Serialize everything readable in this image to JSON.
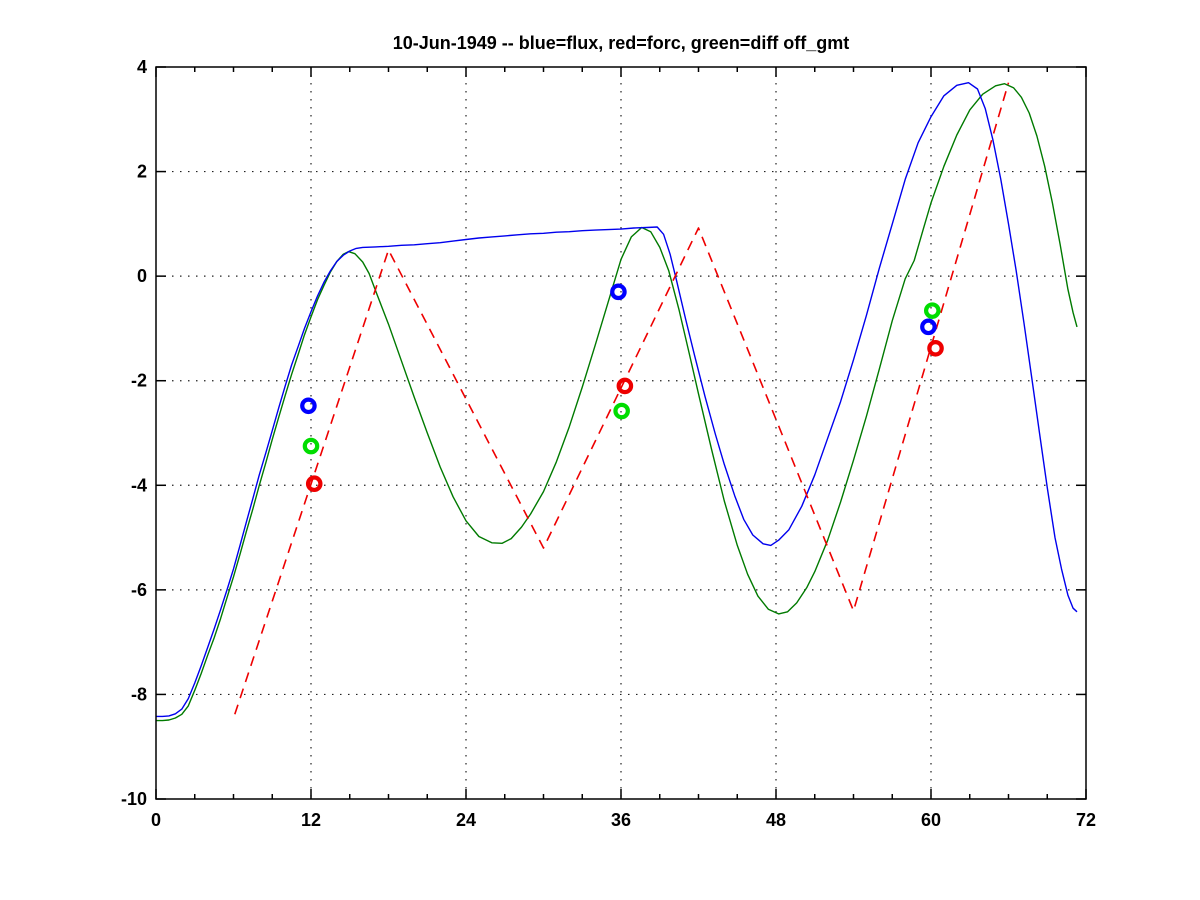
{
  "chart_data": {
    "type": "line",
    "title": "10-Jun-1949 -- blue=flux, red=forc, green=diff off_gmt",
    "xlabel": "",
    "ylabel": "",
    "xlim": [
      0,
      72
    ],
    "ylim": [
      -10,
      4
    ],
    "x_ticks": [
      0,
      12,
      24,
      36,
      48,
      60,
      72
    ],
    "x_minor_step": 3,
    "y_ticks": [
      4,
      2,
      0,
      -2,
      -4,
      -6,
      -8,
      -10
    ],
    "grid": "dotted",
    "legend_in_title": {
      "blue": "flux",
      "red": "forc",
      "green": "diff off_gmt"
    },
    "colors": {
      "flux_line": "#0000ee",
      "forc_line": "#ee0000",
      "diff_line": "#007a00",
      "flux_marker": "#0000ff",
      "forc_marker": "#ee0000",
      "diff_marker": "#00dd00",
      "grid": "#222222",
      "axis": "#000000"
    },
    "series": [
      {
        "name": "diff",
        "style": "solid",
        "points": [
          [
            0,
            -8.5
          ],
          [
            0.5,
            -8.5
          ],
          [
            1,
            -8.49
          ],
          [
            1.5,
            -8.45
          ],
          [
            2,
            -8.38
          ],
          [
            2.5,
            -8.22
          ],
          [
            3,
            -7.92
          ],
          [
            3.5,
            -7.6
          ],
          [
            4,
            -7.25
          ],
          [
            4.5,
            -6.92
          ],
          [
            5,
            -6.55
          ],
          [
            5.5,
            -6.15
          ],
          [
            6,
            -5.75
          ],
          [
            6.5,
            -5.32
          ],
          [
            7,
            -4.88
          ],
          [
            7.5,
            -4.45
          ],
          [
            8,
            -4.0
          ],
          [
            8.5,
            -3.57
          ],
          [
            9,
            -3.12
          ],
          [
            9.5,
            -2.7
          ],
          [
            10,
            -2.28
          ],
          [
            10.5,
            -1.88
          ],
          [
            11,
            -1.5
          ],
          [
            11.5,
            -1.12
          ],
          [
            12,
            -0.78
          ],
          [
            12.5,
            -0.45
          ],
          [
            13,
            -0.18
          ],
          [
            13.5,
            0.08
          ],
          [
            14,
            0.28
          ],
          [
            14.5,
            0.42
          ],
          [
            14.9,
            0.47
          ],
          [
            15.4,
            0.43
          ],
          [
            16,
            0.27
          ],
          [
            16.5,
            0.05
          ],
          [
            17,
            -0.28
          ],
          [
            18,
            -0.92
          ],
          [
            19,
            -1.62
          ],
          [
            20,
            -2.32
          ],
          [
            21,
            -3.0
          ],
          [
            22,
            -3.65
          ],
          [
            23,
            -4.22
          ],
          [
            24,
            -4.68
          ],
          [
            25,
            -4.98
          ],
          [
            26,
            -5.1
          ],
          [
            26.8,
            -5.11
          ],
          [
            27.5,
            -5.02
          ],
          [
            28.3,
            -4.8
          ],
          [
            29,
            -4.55
          ],
          [
            30,
            -4.12
          ],
          [
            31,
            -3.55
          ],
          [
            32,
            -2.88
          ],
          [
            33,
            -2.12
          ],
          [
            34,
            -1.32
          ],
          [
            35,
            -0.5
          ],
          [
            36,
            0.32
          ],
          [
            36.8,
            0.75
          ],
          [
            37.6,
            0.93
          ],
          [
            38.3,
            0.85
          ],
          [
            39,
            0.55
          ],
          [
            39.7,
            0.1
          ],
          [
            40.5,
            -0.65
          ],
          [
            41.3,
            -1.5
          ],
          [
            42,
            -2.25
          ],
          [
            43,
            -3.3
          ],
          [
            44,
            -4.3
          ],
          [
            45,
            -5.15
          ],
          [
            45.8,
            -5.7
          ],
          [
            46.6,
            -6.12
          ],
          [
            47.4,
            -6.37
          ],
          [
            48.2,
            -6.46
          ],
          [
            48.9,
            -6.42
          ],
          [
            49.6,
            -6.25
          ],
          [
            50.4,
            -5.95
          ],
          [
            51,
            -5.65
          ],
          [
            52,
            -5.05
          ],
          [
            53,
            -4.32
          ],
          [
            54,
            -3.52
          ],
          [
            55,
            -2.68
          ],
          [
            56,
            -1.78
          ],
          [
            57,
            -0.85
          ],
          [
            58,
            -0.05
          ],
          [
            58.7,
            0.3
          ],
          [
            59.4,
            0.9
          ],
          [
            60,
            1.4
          ],
          [
            61,
            2.1
          ],
          [
            62,
            2.7
          ],
          [
            63,
            3.18
          ],
          [
            64,
            3.48
          ],
          [
            65,
            3.64
          ],
          [
            65.7,
            3.68
          ],
          [
            66.4,
            3.6
          ],
          [
            67,
            3.42
          ],
          [
            67.6,
            3.12
          ],
          [
            68.2,
            2.68
          ],
          [
            68.8,
            2.1
          ],
          [
            69.4,
            1.4
          ],
          [
            70,
            0.6
          ],
          [
            70.6,
            -0.25
          ],
          [
            71,
            -0.7
          ],
          [
            71.3,
            -0.97
          ]
        ]
      },
      {
        "name": "flux",
        "style": "solid",
        "points": [
          [
            0,
            -8.42
          ],
          [
            0.5,
            -8.42
          ],
          [
            1,
            -8.41
          ],
          [
            1.5,
            -8.37
          ],
          [
            2,
            -8.28
          ],
          [
            2.5,
            -8.08
          ],
          [
            3,
            -7.78
          ],
          [
            3.5,
            -7.45
          ],
          [
            4,
            -7.1
          ],
          [
            4.5,
            -6.75
          ],
          [
            5,
            -6.38
          ],
          [
            5.5,
            -6.0
          ],
          [
            6,
            -5.6
          ],
          [
            6.5,
            -5.15
          ],
          [
            7,
            -4.7
          ],
          [
            7.5,
            -4.25
          ],
          [
            8,
            -3.8
          ],
          [
            8.5,
            -3.38
          ],
          [
            9,
            -2.95
          ],
          [
            9.5,
            -2.52
          ],
          [
            10,
            -2.1
          ],
          [
            10.5,
            -1.7
          ],
          [
            11,
            -1.35
          ],
          [
            11.5,
            -1.0
          ],
          [
            12,
            -0.68
          ],
          [
            12.5,
            -0.38
          ],
          [
            13,
            -0.12
          ],
          [
            13.5,
            0.1
          ],
          [
            14,
            0.28
          ],
          [
            14.5,
            0.4
          ],
          [
            15,
            0.48
          ],
          [
            15.5,
            0.53
          ],
          [
            16,
            0.55
          ],
          [
            17,
            0.56
          ],
          [
            18,
            0.57
          ],
          [
            19,
            0.59
          ],
          [
            20,
            0.6
          ],
          [
            21,
            0.62
          ],
          [
            22,
            0.64
          ],
          [
            23,
            0.67
          ],
          [
            24,
            0.7
          ],
          [
            25,
            0.73
          ],
          [
            26,
            0.75
          ],
          [
            27,
            0.77
          ],
          [
            28,
            0.79
          ],
          [
            29,
            0.81
          ],
          [
            30,
            0.82
          ],
          [
            31,
            0.84
          ],
          [
            32,
            0.85
          ],
          [
            33,
            0.87
          ],
          [
            34,
            0.88
          ],
          [
            35,
            0.89
          ],
          [
            36,
            0.9
          ],
          [
            37,
            0.92
          ],
          [
            38,
            0.93
          ],
          [
            38.8,
            0.94
          ],
          [
            39.3,
            0.8
          ],
          [
            39.8,
            0.42
          ],
          [
            40.3,
            -0.08
          ],
          [
            41,
            -0.82
          ],
          [
            41.7,
            -1.52
          ],
          [
            42.5,
            -2.3
          ],
          [
            43.3,
            -3.02
          ],
          [
            44,
            -3.6
          ],
          [
            44.8,
            -4.2
          ],
          [
            45.5,
            -4.65
          ],
          [
            46.2,
            -4.95
          ],
          [
            47,
            -5.12
          ],
          [
            47.6,
            -5.15
          ],
          [
            48.2,
            -5.05
          ],
          [
            49,
            -4.85
          ],
          [
            50,
            -4.4
          ],
          [
            51,
            -3.8
          ],
          [
            52,
            -3.1
          ],
          [
            53,
            -2.4
          ],
          [
            54,
            -1.6
          ],
          [
            55,
            -0.75
          ],
          [
            56,
            0.15
          ],
          [
            57,
            1.0
          ],
          [
            58,
            1.85
          ],
          [
            59,
            2.55
          ],
          [
            60,
            3.05
          ],
          [
            61,
            3.45
          ],
          [
            62,
            3.65
          ],
          [
            62.9,
            3.7
          ],
          [
            63.6,
            3.58
          ],
          [
            64.2,
            3.2
          ],
          [
            64.8,
            2.6
          ],
          [
            65.4,
            1.85
          ],
          [
            66,
            1.0
          ],
          [
            66.6,
            0.1
          ],
          [
            67.2,
            -0.9
          ],
          [
            67.8,
            -1.95
          ],
          [
            68.4,
            -3.0
          ],
          [
            69,
            -4.05
          ],
          [
            69.6,
            -5.0
          ],
          [
            70.1,
            -5.6
          ],
          [
            70.6,
            -6.1
          ],
          [
            71,
            -6.35
          ],
          [
            71.3,
            -6.42
          ]
        ]
      },
      {
        "name": "forc",
        "style": "dashed",
        "points": [
          [
            6.1,
            -8.38
          ],
          [
            18,
            0.5
          ],
          [
            30,
            -5.2
          ],
          [
            42,
            0.92
          ],
          [
            54,
            -6.4
          ],
          [
            66,
            3.7
          ]
        ]
      }
    ],
    "markers": [
      {
        "name": "flux-circles",
        "points": [
          [
            11.8,
            -2.48
          ],
          [
            35.8,
            -0.3
          ],
          [
            59.8,
            -0.97
          ]
        ]
      },
      {
        "name": "diff-circles",
        "points": [
          [
            12.0,
            -3.25
          ],
          [
            36.05,
            -2.58
          ],
          [
            60.1,
            -0.66
          ]
        ]
      },
      {
        "name": "forc-circles",
        "points": [
          [
            12.25,
            -3.97
          ],
          [
            36.3,
            -2.1
          ],
          [
            60.35,
            -1.38
          ]
        ]
      }
    ]
  }
}
